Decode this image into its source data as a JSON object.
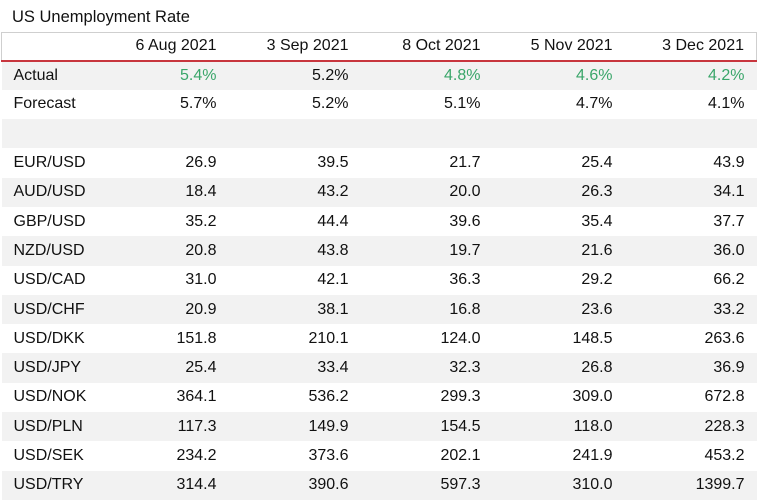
{
  "title": "US Unemployment Rate",
  "colors": {
    "header_rule": "#c8363e",
    "highlight": "#3aa66a",
    "band": "#f2f2f2"
  },
  "chart_data": {
    "type": "table",
    "title": "US Unemployment Rate",
    "columns": [
      "",
      "6 Aug 2021",
      "3 Sep 2021",
      "8 Oct 2021",
      "5 Nov 2021",
      "3 Dec 2021"
    ],
    "rows": [
      {
        "label": "Actual",
        "values": [
          "5.4%",
          "5.2%",
          "4.8%",
          "4.6%",
          "4.2%"
        ],
        "green": [
          true,
          false,
          true,
          true,
          true
        ]
      },
      {
        "label": "Forecast",
        "values": [
          "5.7%",
          "5.2%",
          "5.1%",
          "4.7%",
          "4.1%"
        ]
      },
      {
        "label": "",
        "values": [
          "",
          "",
          "",
          "",
          ""
        ]
      },
      {
        "label": "EUR/USD",
        "values": [
          "26.9",
          "39.5",
          "21.7",
          "25.4",
          "43.9"
        ]
      },
      {
        "label": "AUD/USD",
        "values": [
          "18.4",
          "43.2",
          "20.0",
          "26.3",
          "34.1"
        ]
      },
      {
        "label": "GBP/USD",
        "values": [
          "35.2",
          "44.4",
          "39.6",
          "35.4",
          "37.7"
        ]
      },
      {
        "label": "NZD/USD",
        "values": [
          "20.8",
          "43.8",
          "19.7",
          "21.6",
          "36.0"
        ]
      },
      {
        "label": "USD/CAD",
        "values": [
          "31.0",
          "42.1",
          "36.3",
          "29.2",
          "66.2"
        ]
      },
      {
        "label": "USD/CHF",
        "values": [
          "20.9",
          "38.1",
          "16.8",
          "23.6",
          "33.2"
        ]
      },
      {
        "label": "USD/DKK",
        "values": [
          "151.8",
          "210.1",
          "124.0",
          "148.5",
          "263.6"
        ]
      },
      {
        "label": "USD/JPY",
        "values": [
          "25.4",
          "33.4",
          "32.3",
          "26.8",
          "36.9"
        ]
      },
      {
        "label": "USD/NOK",
        "values": [
          "364.1",
          "536.2",
          "299.3",
          "309.0",
          "672.8"
        ]
      },
      {
        "label": "USD/PLN",
        "values": [
          "117.3",
          "149.9",
          "154.5",
          "118.0",
          "228.3"
        ]
      },
      {
        "label": "USD/SEK",
        "values": [
          "234.2",
          "373.6",
          "202.1",
          "241.9",
          "453.2"
        ]
      },
      {
        "label": "USD/TRY",
        "values": [
          "314.4",
          "390.6",
          "597.3",
          "310.0",
          "1399.7"
        ]
      }
    ]
  }
}
